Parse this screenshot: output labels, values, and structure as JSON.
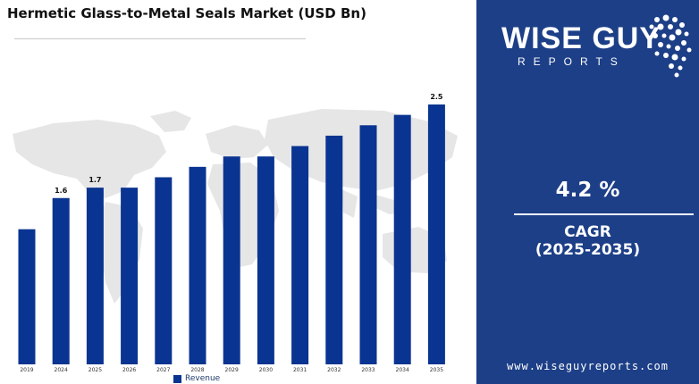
{
  "title": "Hermetic Glass-to-Metal Seals Market (USD Bn)",
  "legend_label": "Revenue",
  "brand": {
    "logo_main": "WISE GUY",
    "logo_sub": "REPORTS",
    "website": "www.wiseguyreports.com",
    "panel_color": "#1d3f87"
  },
  "cagr": {
    "value": "4.2 %",
    "label": "CAGR",
    "period": "(2025-2035)"
  },
  "chart_data": {
    "type": "bar",
    "categories": [
      "2019",
      "2024",
      "2025",
      "2026",
      "2027",
      "2028",
      "2029",
      "2030",
      "2031",
      "2032",
      "2033",
      "2034",
      "2035"
    ],
    "values": [
      1.3,
      1.6,
      1.7,
      1.7,
      1.8,
      1.9,
      2.0,
      2.0,
      2.1,
      2.2,
      2.3,
      2.4,
      2.5
    ],
    "data_labels": [
      "",
      "1.6",
      "1.7",
      "",
      "",
      "",
      "",
      "",
      "",
      "",
      "",
      "",
      "2.5"
    ],
    "bar_color": "#0a3491",
    "ylim": [
      0,
      2.5
    ],
    "grid": false,
    "legend_position": "bottom-center"
  }
}
